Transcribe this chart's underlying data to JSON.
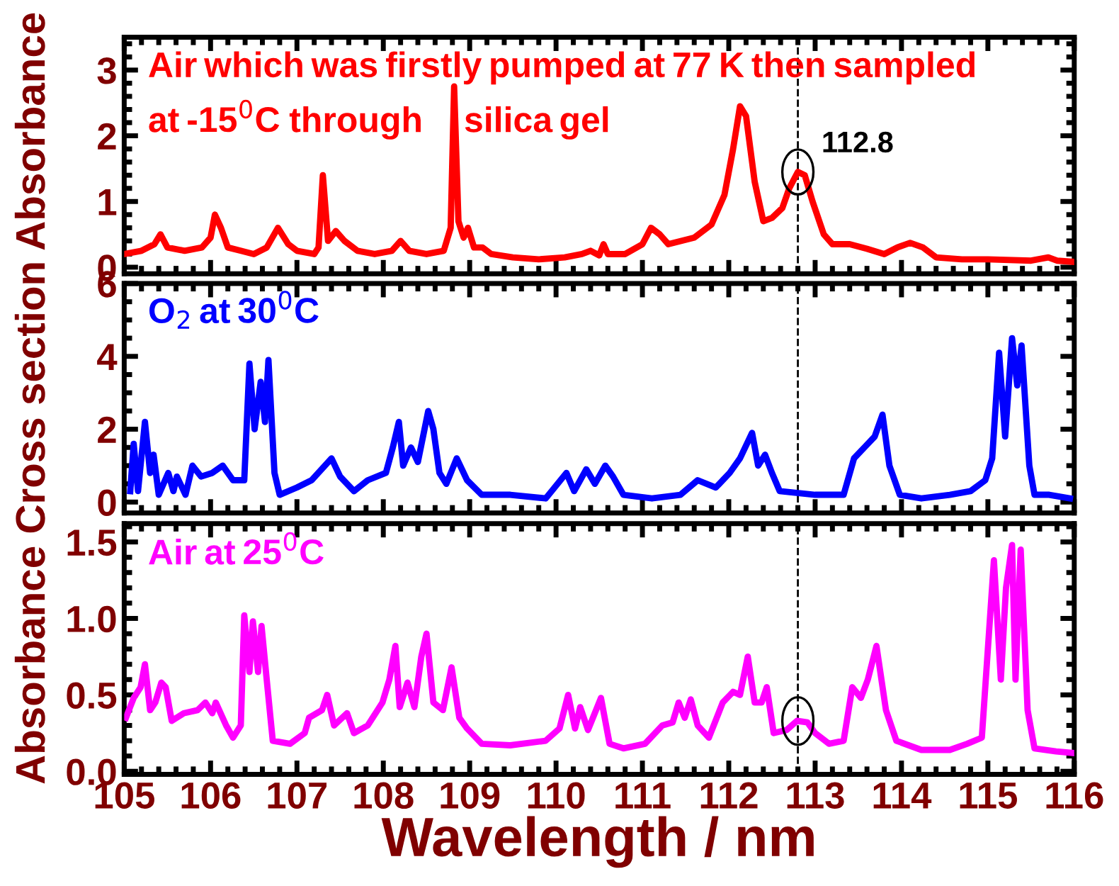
{
  "chart_data": [
    {
      "type": "line",
      "xlim": [
        105,
        116
      ],
      "xticks": [
        105,
        106,
        107,
        108,
        109,
        110,
        111,
        112,
        113,
        114,
        115,
        116
      ],
      "ylim": [
        -0.1,
        3.5
      ],
      "yticks": [
        0,
        1,
        2,
        3
      ],
      "tick_labels": "y",
      "grid": false,
      "legend": false,
      "series": [
        {
          "name": "Air which was firstly pumped at 77 K then sampled\nat -15$^{0}$C through silica gel",
          "color": "#ff0000",
          "x": [
            105.0,
            105.2,
            105.35,
            105.42,
            105.5,
            105.7,
            105.9,
            106.0,
            106.05,
            106.12,
            106.2,
            106.35,
            106.5,
            106.65,
            106.78,
            106.9,
            107.0,
            107.2,
            107.25,
            107.3,
            107.36,
            107.45,
            107.55,
            107.7,
            107.9,
            108.1,
            108.2,
            108.3,
            108.5,
            108.7,
            108.78,
            108.82,
            108.87,
            108.93,
            108.98,
            109.05,
            109.15,
            109.25,
            109.5,
            109.8,
            110.1,
            110.3,
            110.4,
            110.5,
            110.55,
            110.6,
            110.8,
            111.0,
            111.1,
            111.2,
            111.3,
            111.6,
            111.8,
            111.95,
            112.05,
            112.13,
            112.2,
            112.3,
            112.4,
            112.5,
            112.62,
            112.7,
            112.8,
            112.88,
            112.97,
            113.1,
            113.2,
            113.4,
            113.6,
            113.8,
            113.95,
            114.1,
            114.25,
            114.4,
            114.7,
            115.0,
            115.5,
            115.7,
            115.8,
            116.0
          ],
          "values": [
            0.2,
            0.25,
            0.35,
            0.5,
            0.3,
            0.25,
            0.3,
            0.45,
            0.8,
            0.6,
            0.3,
            0.25,
            0.2,
            0.3,
            0.6,
            0.35,
            0.25,
            0.2,
            0.3,
            1.4,
            0.4,
            0.55,
            0.4,
            0.25,
            0.2,
            0.25,
            0.4,
            0.25,
            0.2,
            0.25,
            0.6,
            2.75,
            0.7,
            0.45,
            0.6,
            0.3,
            0.3,
            0.2,
            0.15,
            0.12,
            0.15,
            0.2,
            0.25,
            0.18,
            0.35,
            0.2,
            0.2,
            0.35,
            0.6,
            0.5,
            0.35,
            0.45,
            0.65,
            1.1,
            1.8,
            2.45,
            2.3,
            1.3,
            0.7,
            0.75,
            0.9,
            1.2,
            1.45,
            1.4,
            1.0,
            0.5,
            0.35,
            0.35,
            0.28,
            0.2,
            0.3,
            0.37,
            0.3,
            0.15,
            0.12,
            0.12,
            0.1,
            0.15,
            0.1,
            0.08
          ]
        }
      ],
      "annotations": [
        {
          "text": "112.8",
          "x": 112.8,
          "y": 1.45
        }
      ],
      "ref_lines": [
        {
          "axis": "x",
          "value": 112.8,
          "color": "#000000",
          "line_style": "dashed"
        }
      ]
    },
    {
      "type": "line",
      "xlim": [
        105,
        116
      ],
      "xticks": [
        105,
        106,
        107,
        108,
        109,
        110,
        111,
        112,
        113,
        114,
        115,
        116
      ],
      "ylim": [
        -0.3,
        6
      ],
      "yticks": [
        0,
        2,
        4,
        6
      ],
      "tick_labels": "y",
      "grid": false,
      "legend": false,
      "ylabel": "Absorbance Cross section Absorbance",
      "series": [
        {
          "name": "O$_{2}$ at 30$^{0}$C",
          "color": "#0000ff",
          "x": [
            105.07,
            105.11,
            105.16,
            105.24,
            105.3,
            105.34,
            105.4,
            105.51,
            105.57,
            105.61,
            105.71,
            105.79,
            105.89,
            106.02,
            106.14,
            106.26,
            106.39,
            106.45,
            106.51,
            106.58,
            106.63,
            106.67,
            106.74,
            106.8,
            107.0,
            107.17,
            107.4,
            107.5,
            107.66,
            107.82,
            108.03,
            108.11,
            108.18,
            108.23,
            108.32,
            108.4,
            108.52,
            108.58,
            108.65,
            108.73,
            108.85,
            108.97,
            109.14,
            109.47,
            109.88,
            110.12,
            110.21,
            110.35,
            110.45,
            110.57,
            110.66,
            110.78,
            111.11,
            111.44,
            111.64,
            111.85,
            112.01,
            112.13,
            112.27,
            112.34,
            112.42,
            112.5,
            112.59,
            113.0,
            113.33,
            113.45,
            113.57,
            113.69,
            113.78,
            113.86,
            113.98,
            114.23,
            114.56,
            114.8,
            114.97,
            115.05,
            115.13,
            115.2,
            115.28,
            115.34,
            115.39,
            115.48,
            115.54,
            115.71,
            115.95
          ],
          "values": [
            0.3,
            1.6,
            0.3,
            2.2,
            0.8,
            1.3,
            0.2,
            0.8,
            0.3,
            0.7,
            0.2,
            1.0,
            0.7,
            0.8,
            1.0,
            0.6,
            0.6,
            3.8,
            2.0,
            3.3,
            2.2,
            3.9,
            0.8,
            0.2,
            0.4,
            0.6,
            1.2,
            0.7,
            0.3,
            0.6,
            0.8,
            1.5,
            2.2,
            1.0,
            1.5,
            1.1,
            2.5,
            2.0,
            0.8,
            0.5,
            1.2,
            0.6,
            0.2,
            0.2,
            0.1,
            0.8,
            0.3,
            0.9,
            0.5,
            1.0,
            0.7,
            0.2,
            0.1,
            0.2,
            0.6,
            0.4,
            0.8,
            1.2,
            1.9,
            1.0,
            1.3,
            0.8,
            0.3,
            0.2,
            0.2,
            1.2,
            1.5,
            1.8,
            2.4,
            1.0,
            0.2,
            0.1,
            0.2,
            0.3,
            0.6,
            1.2,
            4.1,
            1.8,
            4.5,
            3.2,
            4.3,
            1.0,
            0.2,
            0.2,
            0.1
          ]
        }
      ],
      "ref_lines": [
        {
          "axis": "x",
          "value": 112.8,
          "color": "#000000",
          "line_style": "dashed"
        }
      ]
    },
    {
      "type": "line",
      "xlim": [
        105,
        116
      ],
      "xticks": [
        105,
        106,
        107,
        108,
        109,
        110,
        111,
        112,
        113,
        114,
        115,
        116
      ],
      "ylim": [
        -0.02,
        1.62
      ],
      "yticks": [
        {
          "value": 0,
          "label": "0.0"
        },
        0.5,
        {
          "value": 1,
          "label": "1.0"
        },
        1.5
      ],
      "grid": false,
      "legend": "top left",
      "xlabel": "Wavelength / nm",
      "series": [
        {
          "name": "Air at 25$^{0}$C",
          "color": "#ff00ff",
          "x": [
            105.02,
            105.11,
            105.19,
            105.24,
            105.3,
            105.36,
            105.43,
            105.48,
            105.55,
            105.69,
            105.85,
            105.94,
            106.02,
            106.06,
            106.18,
            106.26,
            106.35,
            106.39,
            106.45,
            106.49,
            106.55,
            106.59,
            106.65,
            106.72,
            106.92,
            107.09,
            107.14,
            107.29,
            107.35,
            107.43,
            107.58,
            107.66,
            107.82,
            107.99,
            108.07,
            108.14,
            108.19,
            108.28,
            108.36,
            108.44,
            108.5,
            108.58,
            108.69,
            108.79,
            108.88,
            108.97,
            109.14,
            109.47,
            109.88,
            110.04,
            110.14,
            110.22,
            110.28,
            110.37,
            110.52,
            110.62,
            110.78,
            111.03,
            111.23,
            111.35,
            111.42,
            111.49,
            111.56,
            111.64,
            111.77,
            111.93,
            112.05,
            112.13,
            112.22,
            112.3,
            112.38,
            112.44,
            112.52,
            112.67,
            112.79,
            112.91,
            113.0,
            113.16,
            113.33,
            113.43,
            113.53,
            113.61,
            113.71,
            113.82,
            113.94,
            114.23,
            114.56,
            114.76,
            114.93,
            115.07,
            115.15,
            115.21,
            115.28,
            115.32,
            115.38,
            115.46,
            115.54,
            115.79,
            115.99
          ],
          "values": [
            0.35,
            0.48,
            0.55,
            0.7,
            0.4,
            0.45,
            0.58,
            0.55,
            0.33,
            0.38,
            0.4,
            0.45,
            0.38,
            0.45,
            0.3,
            0.22,
            0.3,
            1.02,
            0.65,
            0.98,
            0.65,
            0.95,
            0.6,
            0.2,
            0.18,
            0.25,
            0.35,
            0.4,
            0.5,
            0.3,
            0.38,
            0.25,
            0.3,
            0.45,
            0.6,
            0.82,
            0.42,
            0.58,
            0.42,
            0.75,
            0.9,
            0.45,
            0.4,
            0.68,
            0.35,
            0.28,
            0.18,
            0.17,
            0.2,
            0.28,
            0.5,
            0.28,
            0.42,
            0.27,
            0.48,
            0.18,
            0.15,
            0.18,
            0.3,
            0.32,
            0.45,
            0.35,
            0.47,
            0.3,
            0.22,
            0.45,
            0.52,
            0.5,
            0.75,
            0.45,
            0.45,
            0.55,
            0.25,
            0.27,
            0.33,
            0.32,
            0.25,
            0.18,
            0.2,
            0.55,
            0.48,
            0.6,
            0.82,
            0.4,
            0.2,
            0.14,
            0.14,
            0.18,
            0.22,
            1.38,
            0.6,
            1.2,
            1.48,
            0.6,
            1.45,
            0.4,
            0.15,
            0.13,
            0.12
          ]
        }
      ],
      "ref_lines": [
        {
          "axis": "x",
          "value": 112.8,
          "color": "#000000",
          "line_style": "dashed"
        }
      ]
    }
  ]
}
